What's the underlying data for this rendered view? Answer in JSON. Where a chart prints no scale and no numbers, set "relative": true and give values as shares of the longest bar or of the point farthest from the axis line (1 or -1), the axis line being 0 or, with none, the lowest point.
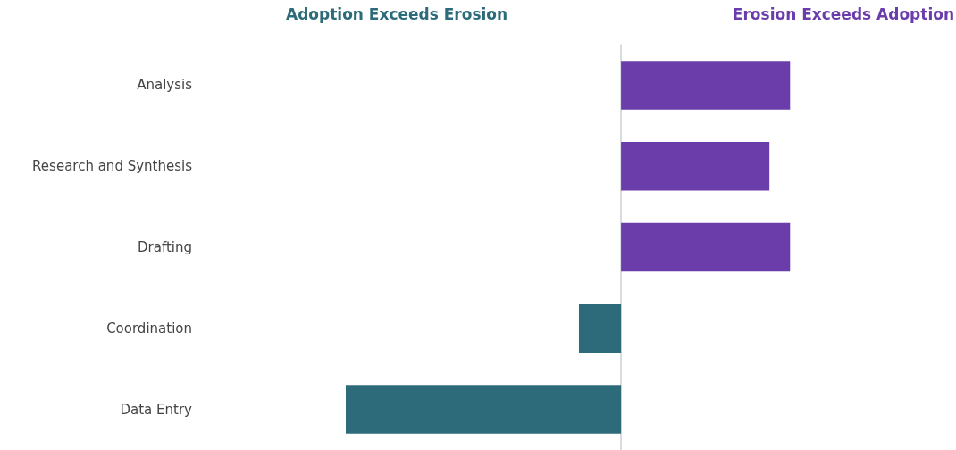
{
  "chart_data": {
    "type": "bar",
    "orientation": "horizontal",
    "relative": true,
    "categories": [
      "Analysis",
      "Research and Synthesis",
      "Drafting",
      "Coordination",
      "Data Entry"
    ],
    "values": [
      0.614,
      0.539,
      0.614,
      -0.153,
      -1
    ],
    "colors": [
      "#6a3dab",
      "#6a3dab",
      "#6a3dab",
      "#2e6b7a",
      "#2e6b7a"
    ],
    "annotations": [
      "Adoption Exceeds Erosion",
      "Erosion Exceeds Adoption"
    ]
  }
}
